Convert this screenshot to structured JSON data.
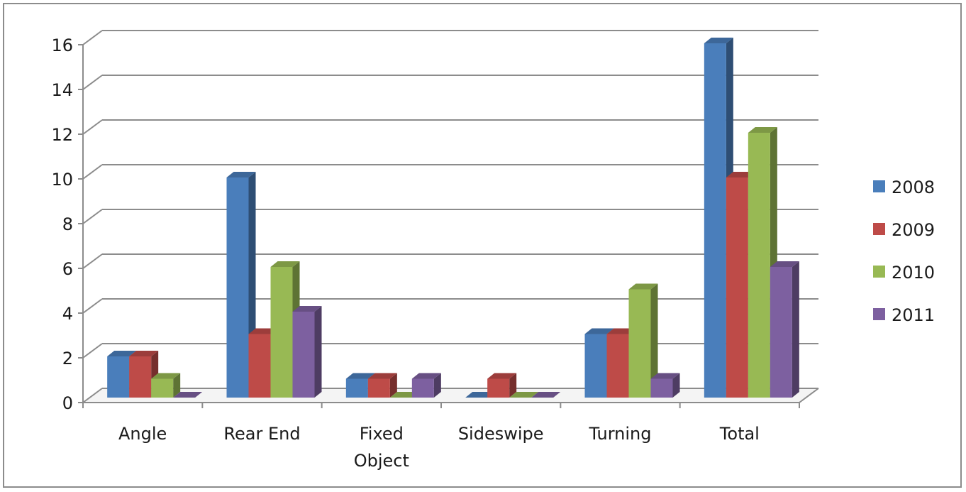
{
  "chart_data": {
    "type": "bar",
    "style": "3d-clustered-column",
    "categories": [
      [
        "Angle"
      ],
      [
        "Rear End"
      ],
      [
        "Fixed",
        "Object"
      ],
      [
        "Sideswipe"
      ],
      [
        "Turning"
      ],
      [
        "Total"
      ]
    ],
    "series": [
      {
        "name": "2008",
        "values": [
          2,
          10,
          1,
          0,
          3,
          16
        ],
        "color": "#4a7ebb"
      },
      {
        "name": "2009",
        "values": [
          2,
          3,
          1,
          1,
          3,
          10
        ],
        "color": "#be4b48"
      },
      {
        "name": "2010",
        "values": [
          1,
          6,
          0,
          0,
          5,
          12
        ],
        "color": "#98b954"
      },
      {
        "name": "2011",
        "values": [
          0,
          4,
          1,
          0,
          1,
          6
        ],
        "color": "#7d60a0"
      }
    ],
    "y_ticks": [
      "0",
      "2",
      "4",
      "6",
      "8",
      "10",
      "12",
      "14",
      "16"
    ],
    "ylim": [
      0,
      16
    ],
    "grid": true,
    "legend_position": "right",
    "title": "",
    "xlabel": "",
    "ylabel": ""
  }
}
